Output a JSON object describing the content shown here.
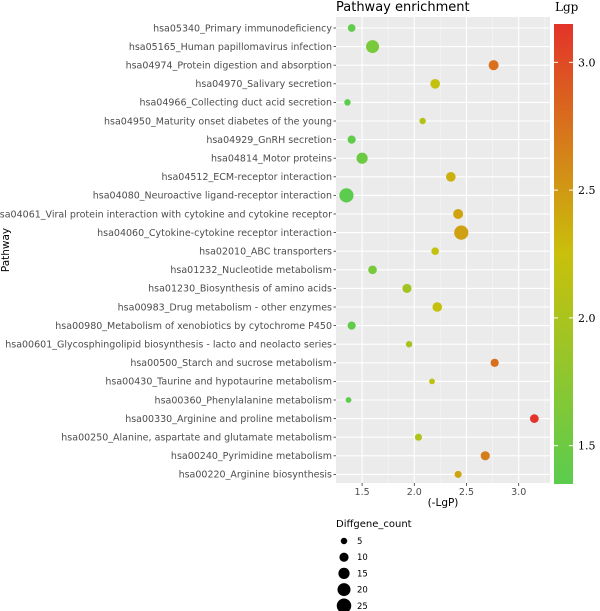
{
  "chart_data": {
    "type": "scatter",
    "title": "Pathway enrichment",
    "xlabel": "(-LgP)",
    "ylabel": "Pathway",
    "xlim": [
      1.25,
      3.3
    ],
    "xticks": [
      1.5,
      2.0,
      2.5,
      3.0
    ],
    "xtick_labels": [
      "1.5",
      "2.0",
      "2.5",
      "3.0"
    ],
    "grid": true,
    "categories": [
      "hsa05340_Primary immunodeficiency",
      "hsa05165_Human papillomavirus infection",
      "hsa04974_Protein digestion and absorption",
      "hsa04970_Salivary secretion",
      "hsa04966_Collecting duct acid secretion",
      "hsa04950_Maturity onset diabetes of the young",
      "hsa04929_GnRH secretion",
      "hsa04814_Motor proteins",
      "hsa04512_ECM-receptor interaction",
      "hsa04080_Neuroactive ligand-receptor interaction",
      "hsa04061_Viral protein interaction with cytokine and cytokine receptor",
      "hsa04060_Cytokine-cytokine receptor interaction",
      "hsa02010_ABC transporters",
      "hsa01232_Nucleotide metabolism",
      "hsa01230_Biosynthesis of amino acids",
      "hsa00983_Drug metabolism - other enzymes",
      "hsa00980_Metabolism of xenobiotics by cytochrome P450",
      "hsa00601_Glycosphingolipid biosynthesis - lacto and neolacto series",
      "hsa00500_Starch and sucrose metabolism",
      "hsa00430_Taurine and hypotaurine metabolism",
      "hsa00360_Phenylalanine metabolism",
      "hsa00330_Arginine and proline metabolism",
      "hsa00250_Alanine, aspartate and glutamate metabolism",
      "hsa00240_Pyrimidine metabolism",
      "hsa00220_Arginine biosynthesis"
    ],
    "points": [
      {
        "x": 1.4,
        "count": 7
      },
      {
        "x": 1.6,
        "count": 20
      },
      {
        "x": 2.76,
        "count": 12
      },
      {
        "x": 2.2,
        "count": 11
      },
      {
        "x": 1.36,
        "count": 5
      },
      {
        "x": 2.08,
        "count": 5
      },
      {
        "x": 1.4,
        "count": 8
      },
      {
        "x": 1.5,
        "count": 15
      },
      {
        "x": 2.35,
        "count": 11
      },
      {
        "x": 1.35,
        "count": 24
      },
      {
        "x": 2.42,
        "count": 12
      },
      {
        "x": 2.45,
        "count": 24
      },
      {
        "x": 2.2,
        "count": 7
      },
      {
        "x": 1.6,
        "count": 9
      },
      {
        "x": 1.93,
        "count": 10
      },
      {
        "x": 2.22,
        "count": 11
      },
      {
        "x": 1.4,
        "count": 8
      },
      {
        "x": 1.95,
        "count": 5
      },
      {
        "x": 2.77,
        "count": 8
      },
      {
        "x": 2.17,
        "count": 4
      },
      {
        "x": 1.37,
        "count": 4
      },
      {
        "x": 3.15,
        "count": 9
      },
      {
        "x": 2.04,
        "count": 6
      },
      {
        "x": 2.68,
        "count": 10
      },
      {
        "x": 2.42,
        "count": 6
      }
    ],
    "color_legend": {
      "title": "Lgp",
      "range": [
        1.35,
        3.15
      ],
      "ticks": [
        1.5,
        2.0,
        2.5,
        3.0
      ],
      "tick_labels": [
        "1.5",
        "2.0",
        "2.5",
        "3.0"
      ],
      "low_color": "#5bcc4e",
      "mid_color": "#c9c00b",
      "high_color": "#e3332a"
    },
    "size_legend": {
      "title": "Diffgene_count",
      "values": [
        5,
        10,
        15,
        20,
        25
      ],
      "labels": [
        "5",
        "10",
        "15",
        "20",
        "25"
      ]
    }
  }
}
